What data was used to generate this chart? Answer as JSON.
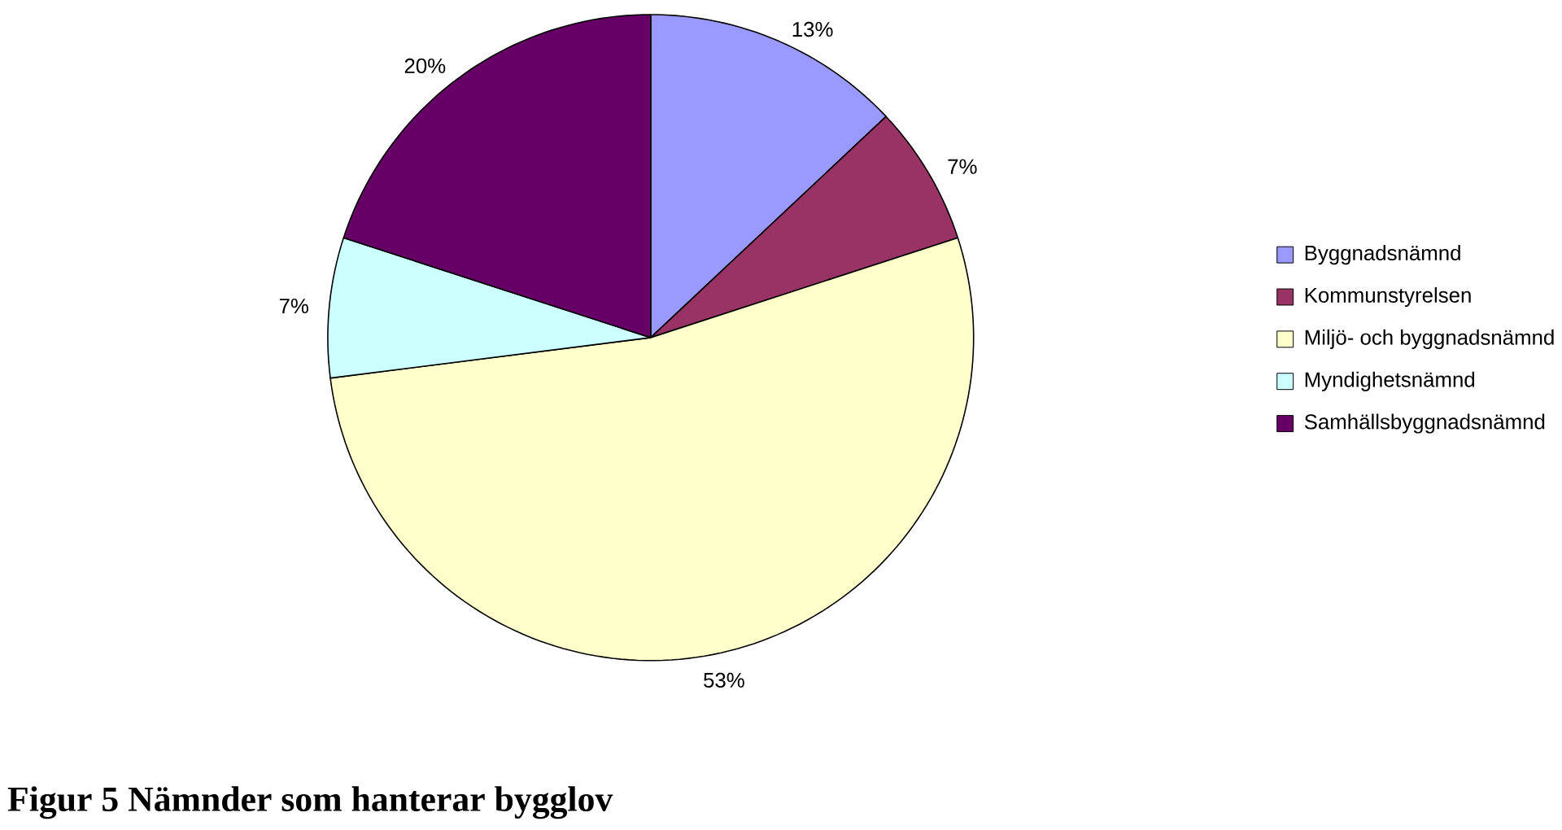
{
  "chart_data": {
    "type": "pie",
    "categories": [
      "Byggnadsnämnd",
      "Kommunstyrelsen",
      "Miljö- och byggnadsnämnd",
      "Myndighetsnämnd",
      "Samhällsbyggnadsnämnd"
    ],
    "values": [
      13,
      7,
      53,
      7,
      20
    ],
    "value_labels": [
      "13%",
      "7%",
      "53%",
      "7%",
      "20%"
    ],
    "colors": [
      "#9999ff",
      "#993366",
      "#ffffcc",
      "#ccffff",
      "#660066"
    ],
    "legend": "right",
    "annotations": [
      "Figur 5 Nämnder som hanterar bygglov"
    ]
  }
}
